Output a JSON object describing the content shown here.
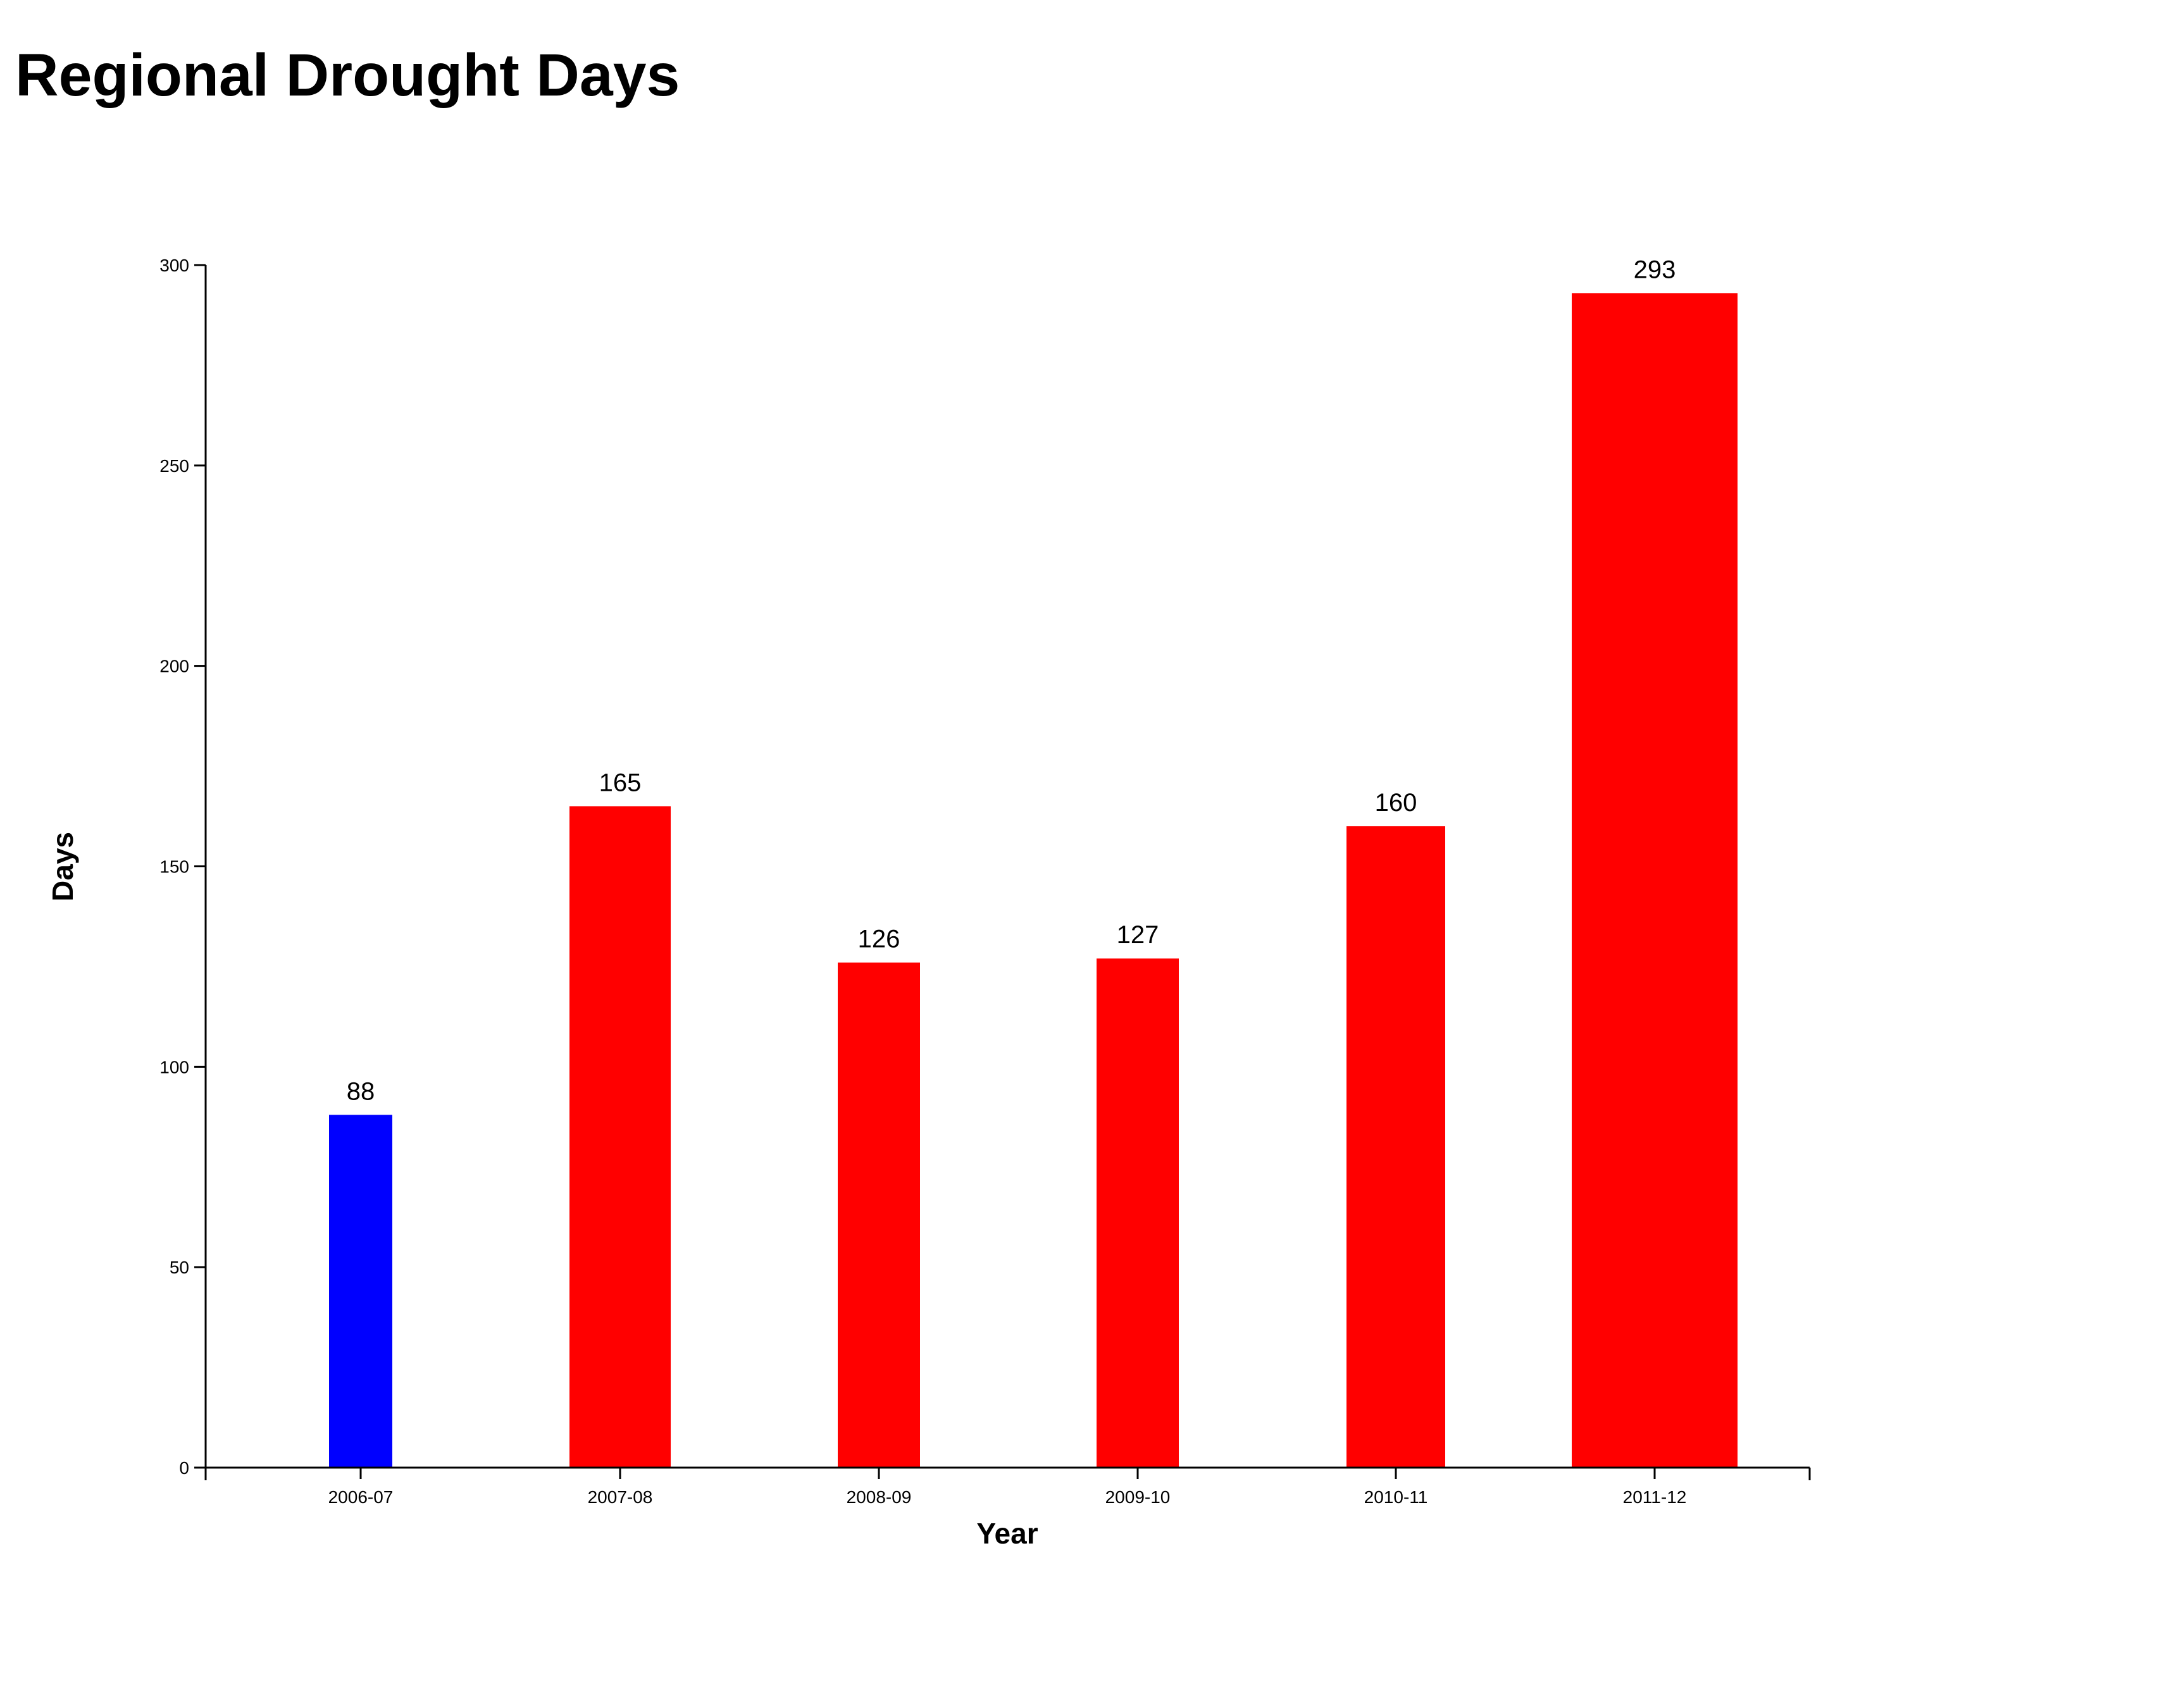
{
  "title": "Regional Drought Days",
  "chart_data": {
    "type": "bar",
    "title": "Regional Drought Days",
    "xlabel": "Year",
    "ylabel": "Days",
    "categories": [
      "2006-07",
      "2007-08",
      "2008-09",
      "2009-10",
      "2010-11",
      "2011-12"
    ],
    "values": [
      88,
      165,
      126,
      127,
      160,
      293
    ],
    "bar_colors": [
      "#0000ff",
      "#ff0000",
      "#ff0000",
      "#ff0000",
      "#ff0000",
      "#ff0000"
    ],
    "ylim": [
      0,
      300
    ],
    "yticks": [
      0,
      50,
      100,
      150,
      200,
      250,
      300
    ],
    "grid": false,
    "legend": "none",
    "data_labels": true
  }
}
